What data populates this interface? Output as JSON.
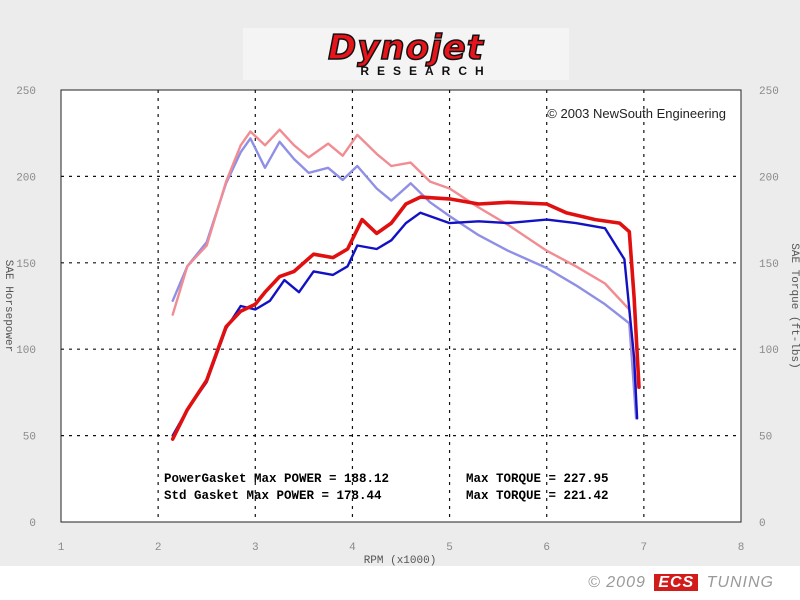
{
  "logo": {
    "brand": "Dynojet",
    "sub": "RESEARCH"
  },
  "footer": {
    "copyright": "© 2009",
    "brand": "ECS",
    "suffix": "TUNING"
  },
  "chart_data": {
    "type": "line",
    "title": "",
    "copyright": "© 2003 NewSouth Engineering",
    "xlabel": "RPM (x1000)",
    "ylabel_left": "SAE Horsepower",
    "ylabel_right": "SAE Torque (ft-lbs)",
    "xlim": [
      1,
      8
    ],
    "ylim": [
      0,
      250
    ],
    "x_ticks": [
      "1",
      "2",
      "3",
      "4",
      "5",
      "6",
      "7",
      "8"
    ],
    "y_ticks": [
      "0",
      "50",
      "100",
      "150",
      "200",
      "250"
    ],
    "grid": true,
    "colors": {
      "power_gasket": "#e01010",
      "std_gasket": "#1212c4",
      "power_gasket_torque": "#f08c92",
      "std_gasket_torque": "#8f8fe6"
    },
    "annotations": [
      {
        "text": "PowerGasket Max POWER = 188.12",
        "color": "#e01010"
      },
      {
        "text": "Max TORQUE = 227.95",
        "color": "#e01010"
      },
      {
        "text": "Std Gasket  Max POWER = 178.44",
        "color": "#1212c4"
      },
      {
        "text": "Max TORQUE = 221.42",
        "color": "#1212c4"
      }
    ],
    "series": [
      {
        "name": "PowerGasket",
        "measure": "power",
        "color": "#e01010",
        "x": [
          2.15,
          2.3,
          2.5,
          2.7,
          2.85,
          3.0,
          3.1,
          3.25,
          3.4,
          3.6,
          3.8,
          3.95,
          4.1,
          4.25,
          4.4,
          4.55,
          4.7,
          5.0,
          5.3,
          5.6,
          6.0,
          6.2,
          6.5,
          6.75,
          6.85,
          6.9,
          6.95
        ],
        "y": [
          48,
          65,
          82,
          113,
          122,
          126,
          133,
          142,
          145,
          155,
          153,
          158,
          175,
          167,
          173,
          184,
          188,
          187,
          184,
          185,
          184,
          179,
          175,
          173,
          168,
          130,
          78
        ]
      },
      {
        "name": "Std Gasket",
        "measure": "power",
        "color": "#1212c4",
        "x": [
          2.15,
          2.3,
          2.5,
          2.7,
          2.85,
          3.0,
          3.15,
          3.3,
          3.45,
          3.6,
          3.8,
          3.95,
          4.05,
          4.25,
          4.4,
          4.55,
          4.7,
          5.0,
          5.3,
          5.6,
          6.0,
          6.3,
          6.6,
          6.8,
          6.9,
          6.93
        ],
        "y": [
          50,
          65,
          81,
          112,
          125,
          123,
          128,
          140,
          133,
          145,
          143,
          148,
          160,
          158,
          163,
          173,
          179,
          173,
          174,
          173,
          175,
          173,
          170,
          152,
          95,
          60
        ]
      },
      {
        "name": "PowerGasket",
        "measure": "torque",
        "color": "#f08c92",
        "x": [
          2.15,
          2.3,
          2.5,
          2.7,
          2.85,
          2.95,
          3.1,
          3.25,
          3.4,
          3.55,
          3.75,
          3.9,
          4.05,
          4.25,
          4.4,
          4.6,
          4.8,
          5.0,
          5.3,
          5.6,
          6.0,
          6.3,
          6.6,
          6.85,
          6.92
        ],
        "y": [
          120,
          148,
          160,
          197,
          218,
          226,
          218,
          227,
          218,
          211,
          219,
          212,
          224,
          213,
          206,
          208,
          197,
          193,
          182,
          172,
          157,
          148,
          138,
          123,
          77
        ]
      },
      {
        "name": "Std Gasket",
        "measure": "torque",
        "color": "#8f8fe6",
        "x": [
          2.15,
          2.3,
          2.5,
          2.7,
          2.85,
          2.95,
          3.1,
          3.25,
          3.4,
          3.55,
          3.75,
          3.9,
          4.05,
          4.25,
          4.4,
          4.6,
          4.8,
          5.0,
          5.3,
          5.6,
          6.0,
          6.3,
          6.6,
          6.85,
          6.92
        ],
        "y": [
          128,
          148,
          162,
          196,
          214,
          222,
          205,
          220,
          210,
          202,
          205,
          198,
          206,
          193,
          186,
          196,
          185,
          177,
          166,
          157,
          147,
          137,
          126,
          115,
          60
        ]
      }
    ]
  }
}
